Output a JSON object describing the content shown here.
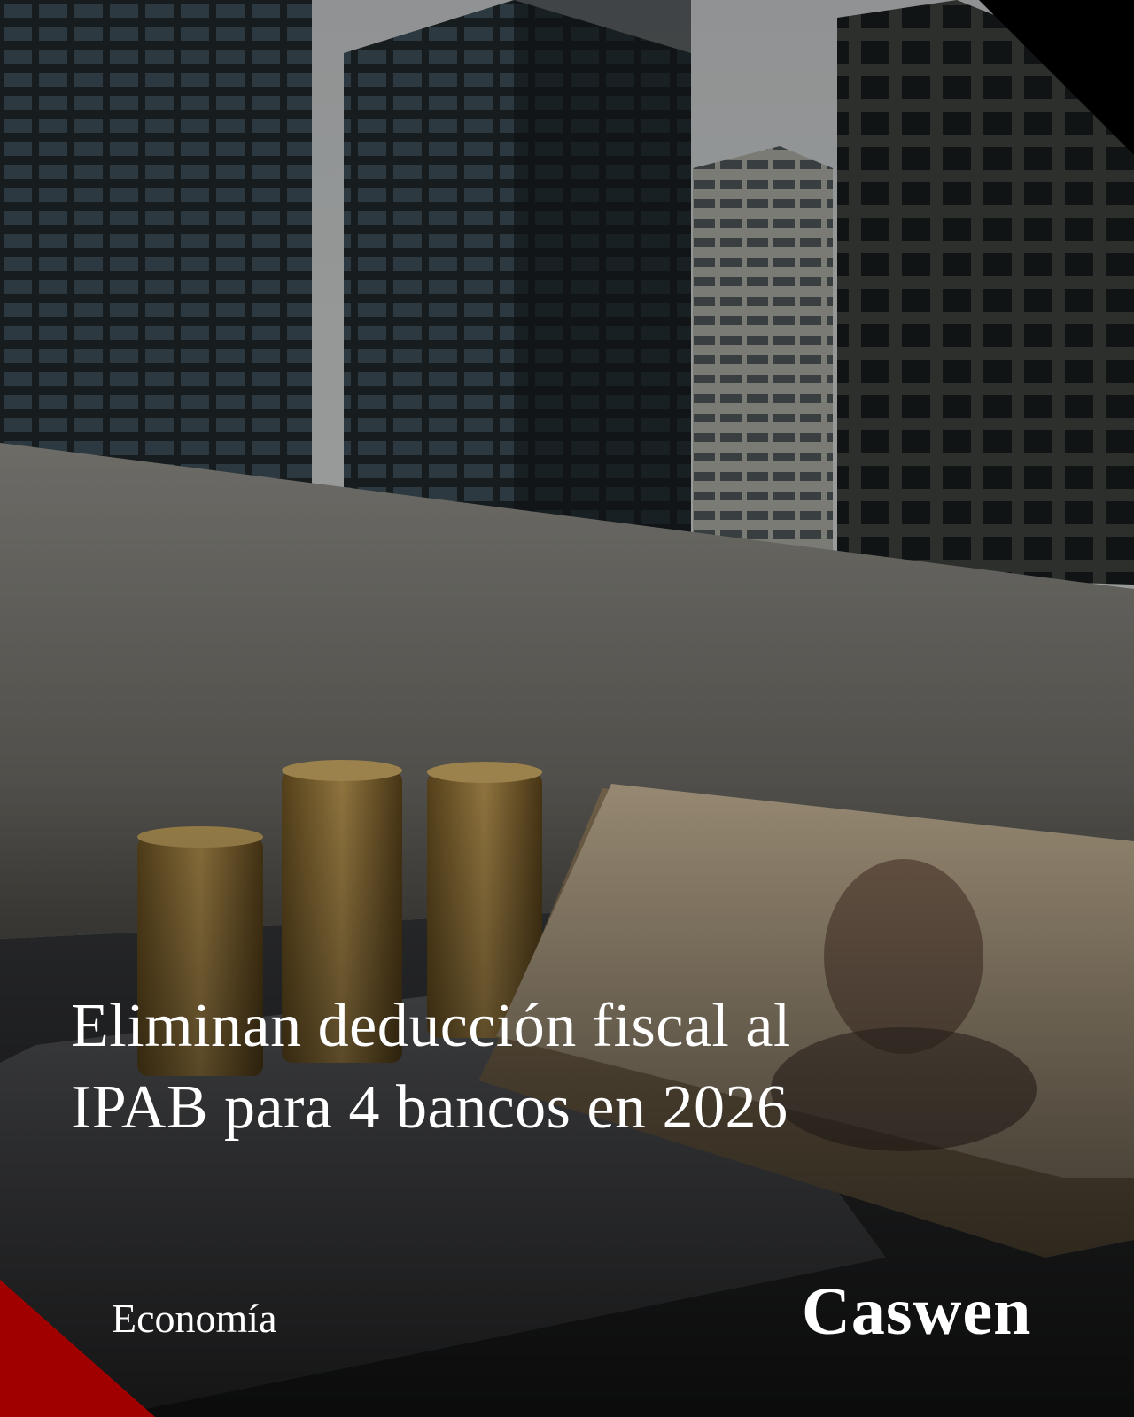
{
  "headline": {
    "title_lines": [
      "Eliminan deducción fiscal al",
      "IPAB para 4 bancos en 2026"
    ]
  },
  "footer": {
    "category": "Economía",
    "brand": "Caswen"
  }
}
